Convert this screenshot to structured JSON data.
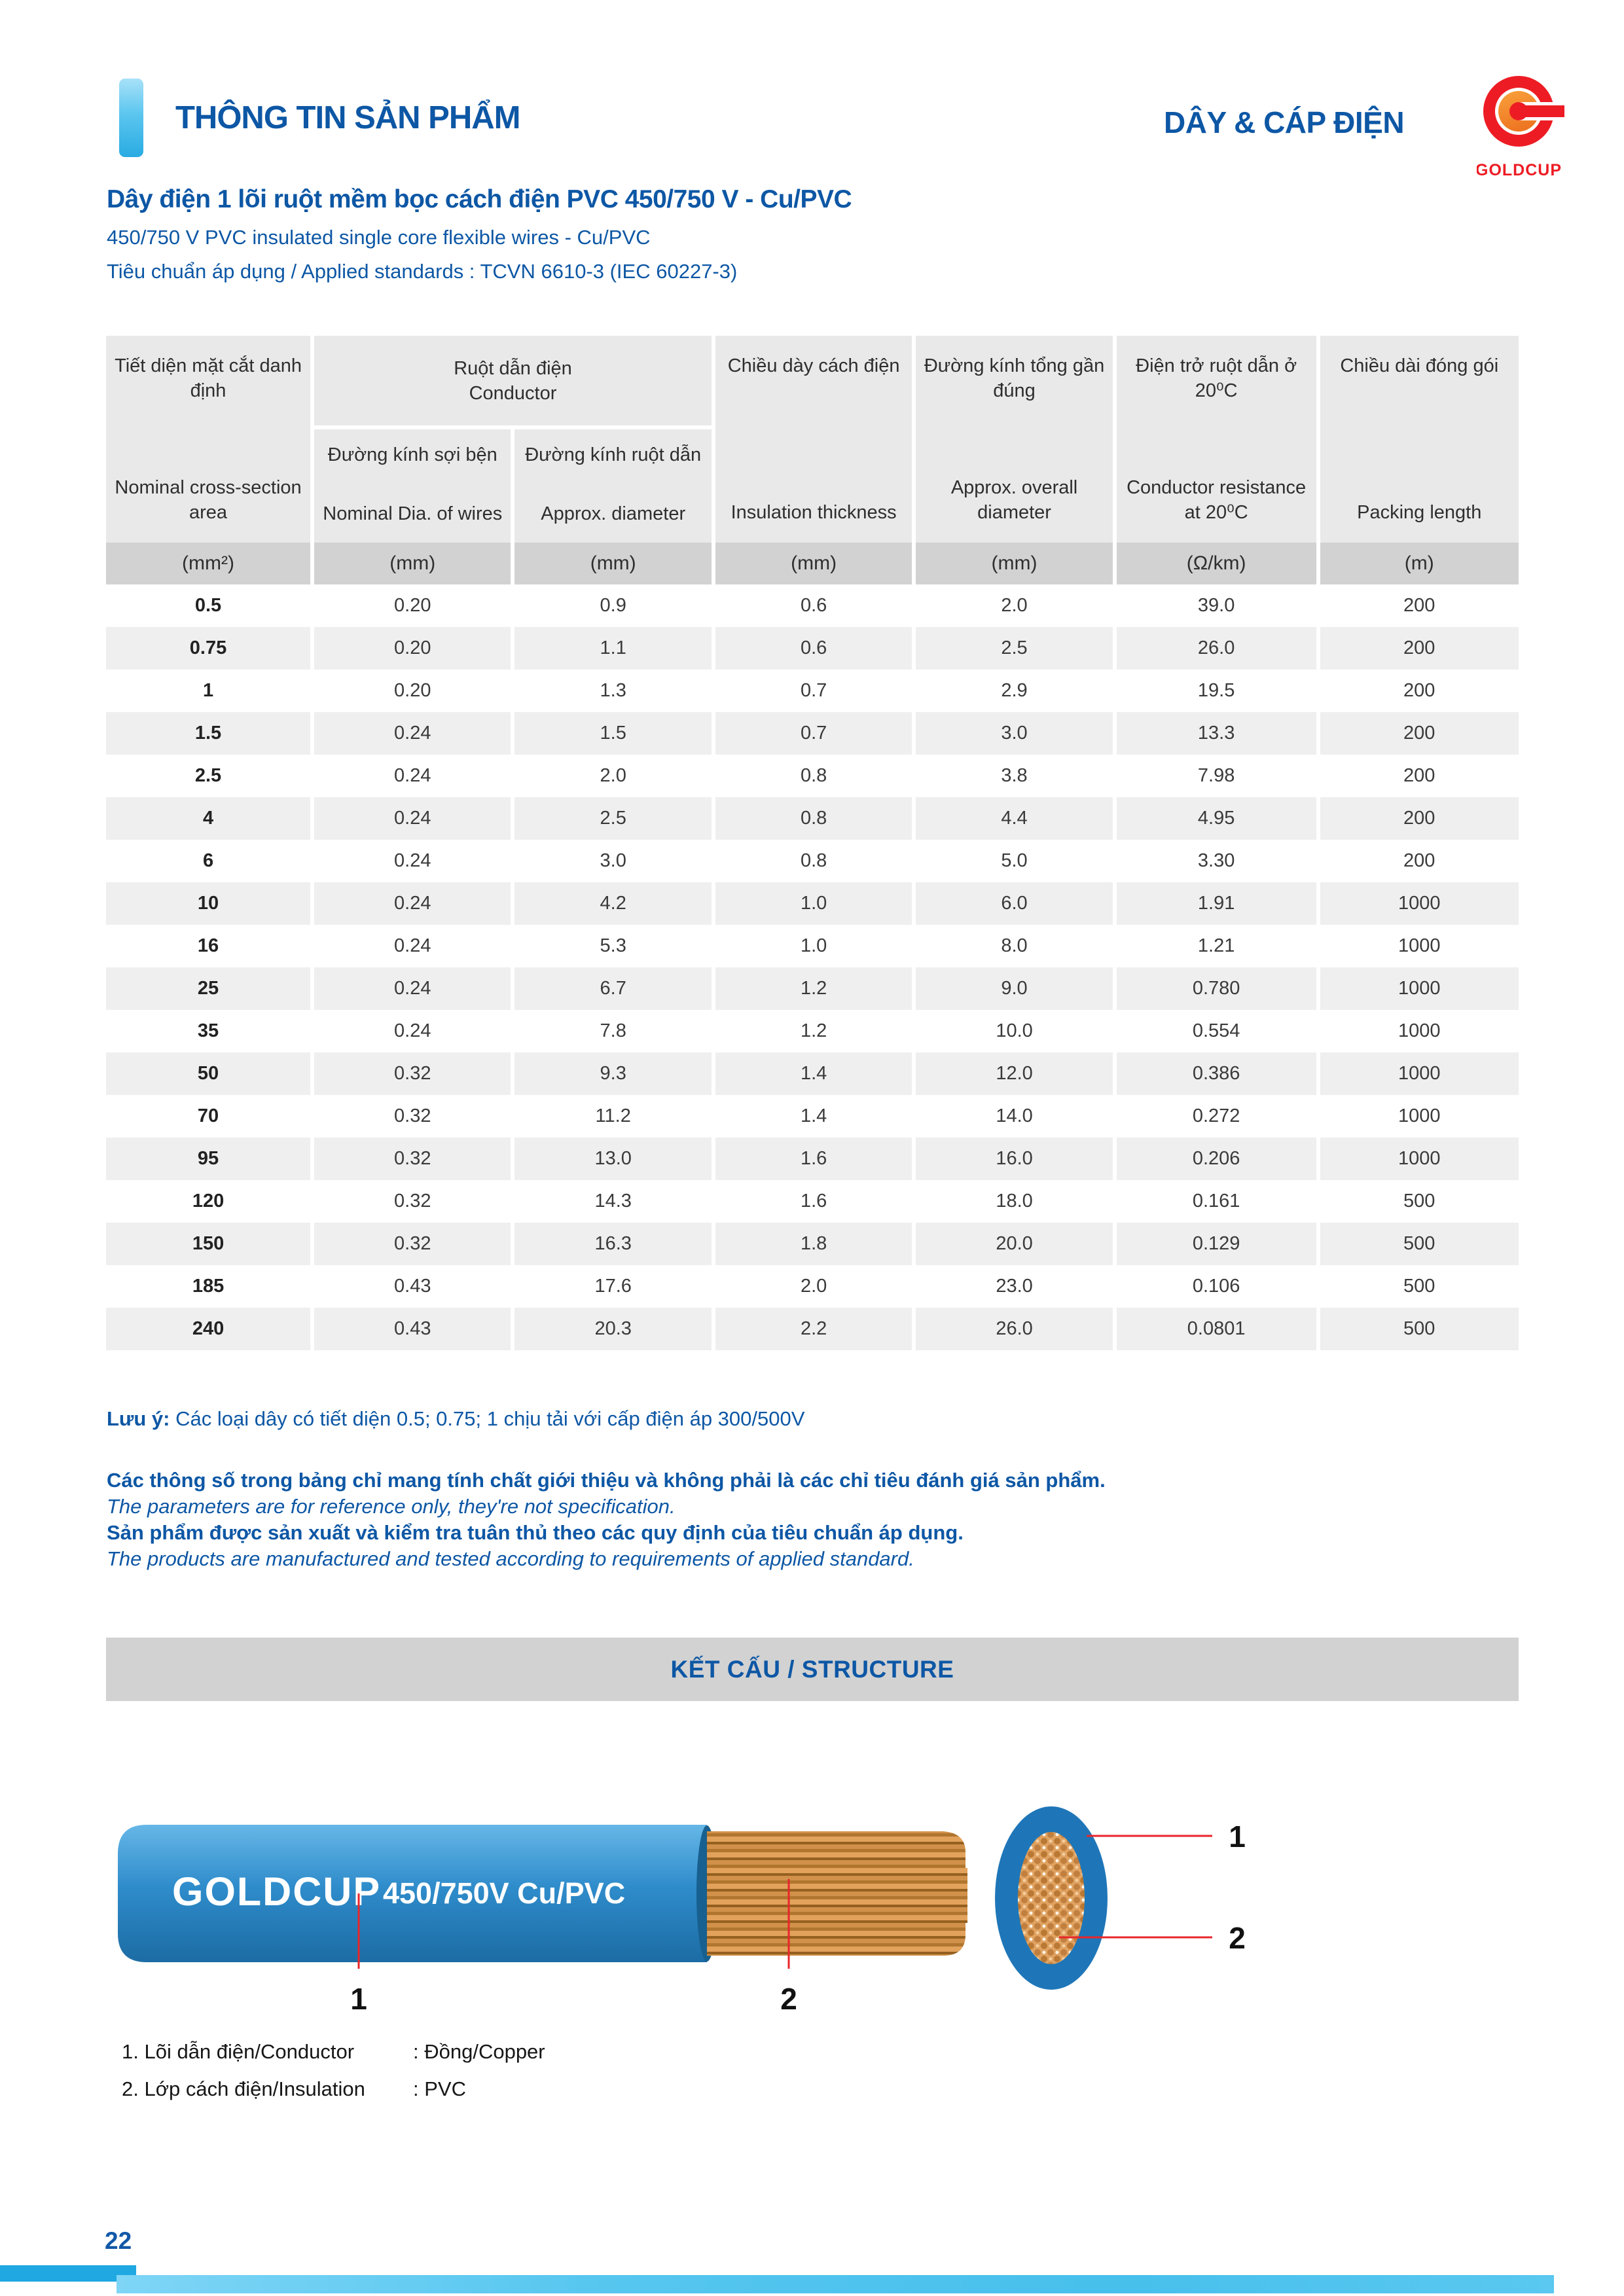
{
  "header": {
    "section_title": "THÔNG TIN SẢN PHẨM",
    "category_title": "DÂY & CÁP ĐIỆN",
    "logo_text": "GOLDCUP"
  },
  "product": {
    "title_vi": "Dây điện 1 lõi ruột mềm bọc cách điện PVC 450/750 V - Cu/PVC",
    "title_en": "450/750 V PVC insulated single core flexible wires - Cu/PVC",
    "standards": "Tiêu chuẩn áp dụng / Applied standards : TCVN 6610-3 (IEC 60227-3)"
  },
  "table": {
    "group_header": {
      "vi": "Ruột dẫn điện",
      "en": "Conductor"
    },
    "columns": [
      {
        "vi": "Tiết diện mặt cắt danh định",
        "en": "Nominal cross-section area",
        "unit": "(mm²)"
      },
      {
        "vi": "Đường kính sợi bện",
        "en": "Nominal Dia. of wires",
        "unit": "(mm)"
      },
      {
        "vi": "Đường kính ruột dẫn",
        "en": "Approx. diameter",
        "unit": "(mm)"
      },
      {
        "vi": "Chiều dày cách điện",
        "en": "Insulation thickness",
        "unit": "(mm)"
      },
      {
        "vi": "Đường kính tổng gần đúng",
        "en": "Approx. overall diameter",
        "unit": "(mm)"
      },
      {
        "vi": "Điện trở ruột dẫn ở 20⁰C",
        "en": "Conductor resistance at 20⁰C",
        "unit": "(Ω/km)"
      },
      {
        "vi": "Chiều dài đóng gói",
        "en": "Packing length",
        "unit": "(m)"
      }
    ],
    "rows": [
      [
        "0.5",
        "0.20",
        "0.9",
        "0.6",
        "2.0",
        "39.0",
        "200"
      ],
      [
        "0.75",
        "0.20",
        "1.1",
        "0.6",
        "2.5",
        "26.0",
        "200"
      ],
      [
        "1",
        "0.20",
        "1.3",
        "0.7",
        "2.9",
        "19.5",
        "200"
      ],
      [
        "1.5",
        "0.24",
        "1.5",
        "0.7",
        "3.0",
        "13.3",
        "200"
      ],
      [
        "2.5",
        "0.24",
        "2.0",
        "0.8",
        "3.8",
        "7.98",
        "200"
      ],
      [
        "4",
        "0.24",
        "2.5",
        "0.8",
        "4.4",
        "4.95",
        "200"
      ],
      [
        "6",
        "0.24",
        "3.0",
        "0.8",
        "5.0",
        "3.30",
        "200"
      ],
      [
        "10",
        "0.24",
        "4.2",
        "1.0",
        "6.0",
        "1.91",
        "1000"
      ],
      [
        "16",
        "0.24",
        "5.3",
        "1.0",
        "8.0",
        "1.21",
        "1000"
      ],
      [
        "25",
        "0.24",
        "6.7",
        "1.2",
        "9.0",
        "0.780",
        "1000"
      ],
      [
        "35",
        "0.24",
        "7.8",
        "1.2",
        "10.0",
        "0.554",
        "1000"
      ],
      [
        "50",
        "0.32",
        "9.3",
        "1.4",
        "12.0",
        "0.386",
        "1000"
      ],
      [
        "70",
        "0.32",
        "11.2",
        "1.4",
        "14.0",
        "0.272",
        "1000"
      ],
      [
        "95",
        "0.32",
        "13.0",
        "1.6",
        "16.0",
        "0.206",
        "1000"
      ],
      [
        "120",
        "0.32",
        "14.3",
        "1.6",
        "18.0",
        "0.161",
        "500"
      ],
      [
        "150",
        "0.32",
        "16.3",
        "1.8",
        "20.0",
        "0.129",
        "500"
      ],
      [
        "185",
        "0.43",
        "17.6",
        "2.0",
        "23.0",
        "0.106",
        "500"
      ],
      [
        "240",
        "0.43",
        "20.3",
        "2.2",
        "26.0",
        "0.0801",
        "500"
      ]
    ]
  },
  "notes": {
    "attention_label": "Lưu ý:",
    "attention_text": " Các loại dây có tiết diện 0.5; 0.75; 1 chịu tải với cấp điện áp 300/500V",
    "note1_vi": "Các thông số trong bảng chỉ mang tính chất giới thiệu và không phải là các chỉ tiêu đánh giá sản phẩm.",
    "note1_en": "The parameters are for reference only, they're not specification.",
    "note2_vi": "Sản phẩm được sản xuất và kiểm tra tuân thủ theo các quy định của tiêu chuẩn áp dụng.",
    "note2_en": "The products are manufactured and tested according to requirements of applied standard."
  },
  "structure": {
    "banner": "KẾT CẤU / STRUCTURE",
    "wire_brand": "GOLDCUP",
    "wire_spec": "450/750V Cu/PVC",
    "label_1": "1",
    "label_2": "2",
    "legend": [
      {
        "name": "1. Lõi dẫn điện/Conductor",
        "value": ": Đồng/Copper"
      },
      {
        "name": "2. Lớp cách điện/Insulation",
        "value": ": PVC"
      }
    ]
  },
  "footer": {
    "page_number": "22"
  },
  "colors": {
    "brand_blue": "#0d57a5",
    "accent_light_blue": "#29abe2",
    "logo_red": "#ED1C24",
    "logo_orange": "#F7941E",
    "wire_blue": "#2F8CCB",
    "copper": "#D1904A",
    "leader_red": "#E8262B",
    "table_header_gray": "#E9E9E9",
    "table_unit_gray": "#D2D2D2",
    "row_alt_gray": "#EFEFEF",
    "banner_gray": "#D2D2D2"
  }
}
